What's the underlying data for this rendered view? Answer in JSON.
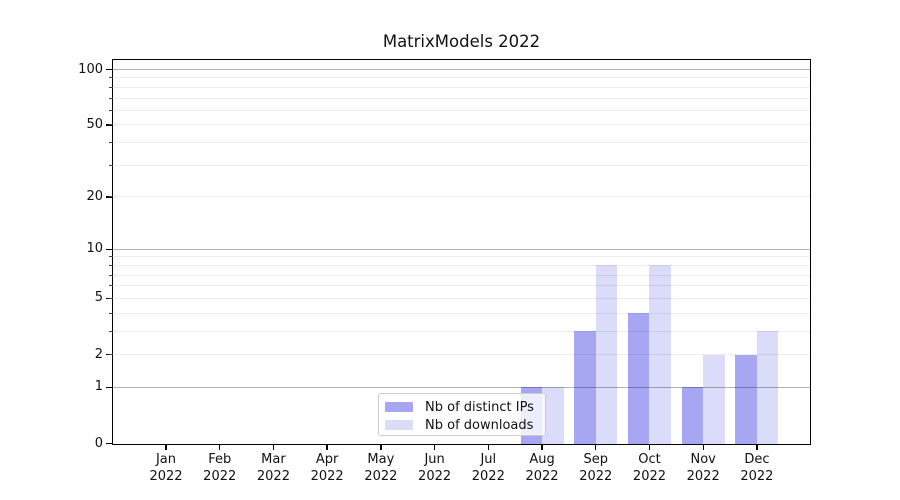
{
  "title": "MatrixModels 2022",
  "chart_data": {
    "type": "bar",
    "title": "MatrixModels 2022",
    "categories": [
      "Jan 2022",
      "Feb 2022",
      "Mar 2022",
      "Apr 2022",
      "May 2022",
      "Jun 2022",
      "Jul 2022",
      "Aug 2022",
      "Sep 2022",
      "Oct 2022",
      "Nov 2022",
      "Dec 2022"
    ],
    "series": [
      {
        "name": "Nb of distinct IPs",
        "color": "#a6a6f2",
        "values": [
          0,
          0,
          0,
          0,
          0,
          0,
          0,
          1,
          3,
          4,
          1,
          2
        ]
      },
      {
        "name": "Nb of downloads",
        "color": "#dbdbfa",
        "values": [
          0,
          0,
          0,
          0,
          0,
          0,
          0,
          1,
          8,
          8,
          2,
          3
        ]
      }
    ],
    "xlabel": "",
    "ylabel": "",
    "yscale": "log1p",
    "ylim": [
      0,
      112
    ],
    "yticks": [
      0,
      1,
      2,
      5,
      10,
      20,
      50,
      100
    ],
    "major_gridline_values": [
      1,
      10,
      100
    ],
    "minor_gridline_values": [
      2,
      3,
      4,
      5,
      6,
      7,
      8,
      9,
      20,
      30,
      40,
      50,
      60,
      70,
      80,
      90
    ],
    "grid": "horizontal major+minor",
    "legend_position": "lower center inside axes",
    "colors": {
      "major_grid": "rgba(0,0,0,0.30)",
      "minor_grid": "rgba(0,0,0,0.07)",
      "spine": "#000000",
      "text": "#111111",
      "background": "#ffffff"
    }
  }
}
